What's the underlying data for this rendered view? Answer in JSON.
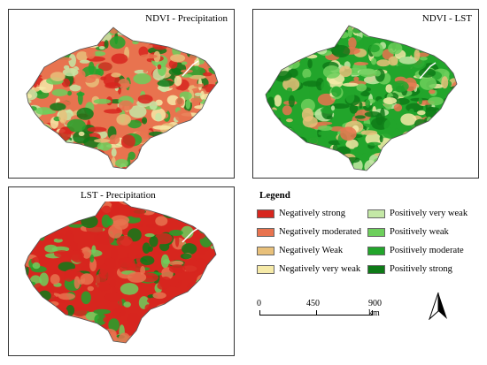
{
  "panels": {
    "ndvi_precip": {
      "title": "NDVI - Precipitation"
    },
    "ndvi_lst": {
      "title": "NDVI - LST"
    },
    "lst_precip": {
      "title": "LST - Precipitation"
    }
  },
  "legend": {
    "title": "Legend",
    "left": [
      {
        "label": "Negatively strong",
        "color": "#d7261e"
      },
      {
        "label": "Negatively moderated",
        "color": "#e8734f"
      },
      {
        "label": "Negatively Weak",
        "color": "#e8c07a"
      },
      {
        "label": "Negatively very weak",
        "color": "#f6eaa8"
      }
    ],
    "right": [
      {
        "label": "Positively very weak",
        "color": "#c4e8a6"
      },
      {
        "label": "Positively weak",
        "color": "#6dcf5c"
      },
      {
        "label": "Positively moderate",
        "color": "#22a52b"
      },
      {
        "label": "Positively strong",
        "color": "#0e7a17"
      }
    ]
  },
  "scalebar": {
    "ticks": [
      "0",
      "450",
      "900 km"
    ]
  },
  "north_arrow": {
    "icon": "north-arrow-icon"
  }
}
